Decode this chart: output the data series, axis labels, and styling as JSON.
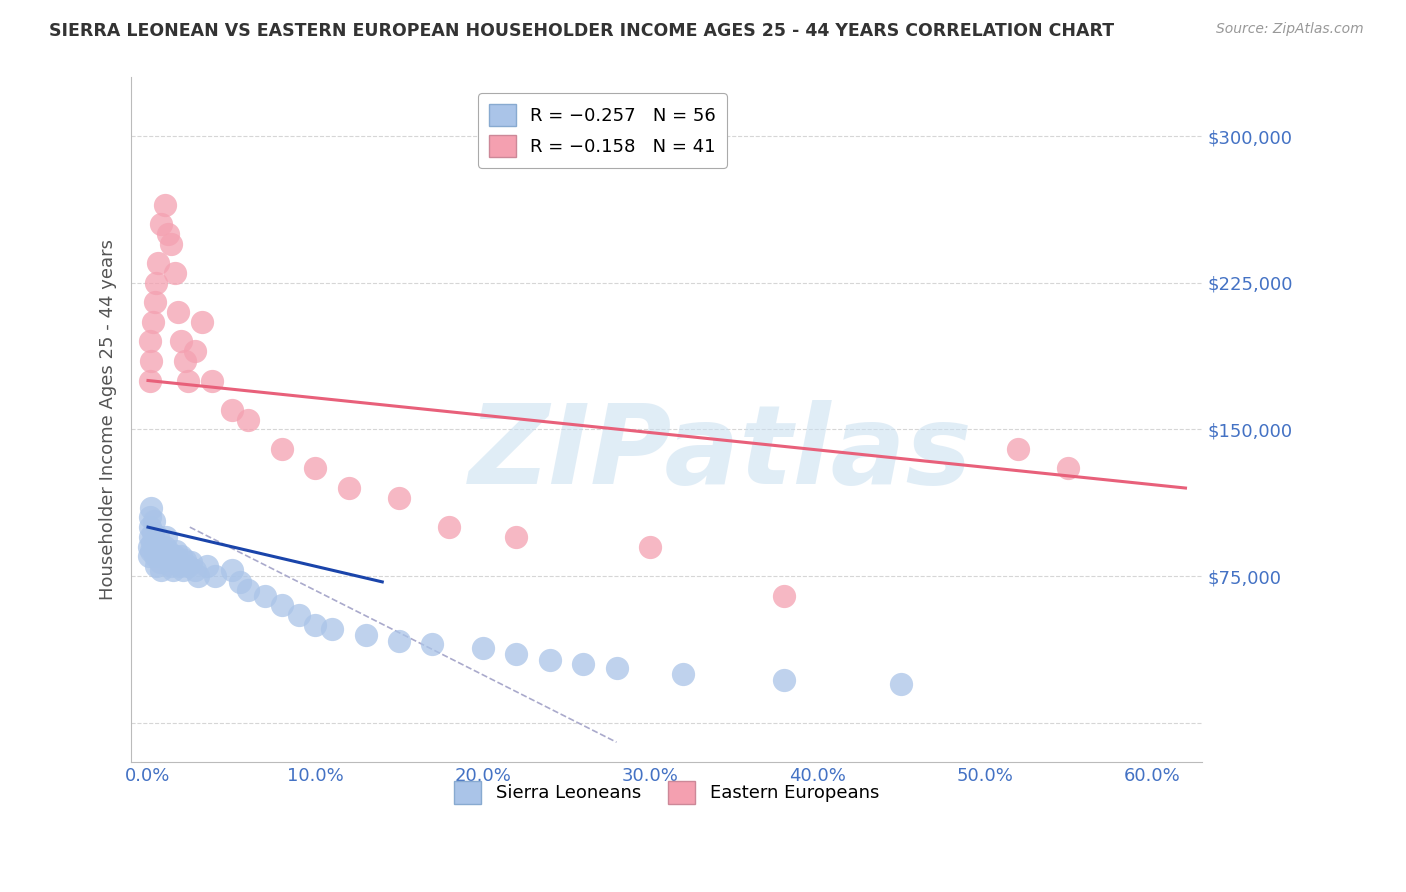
{
  "title": "SIERRA LEONEAN VS EASTERN EUROPEAN HOUSEHOLDER INCOME AGES 25 - 44 YEARS CORRELATION CHART",
  "source": "Source: ZipAtlas.com",
  "ylabel": "Householder Income Ages 25 - 44 years",
  "xlabel_ticks": [
    "0.0%",
    "10.0%",
    "20.0%",
    "30.0%",
    "40.0%",
    "50.0%",
    "60.0%"
  ],
  "xlabel_vals": [
    0.0,
    10.0,
    20.0,
    30.0,
    40.0,
    50.0,
    60.0
  ],
  "yticks": [
    0,
    75000,
    150000,
    225000,
    300000
  ],
  "ytick_labels": [
    "",
    "$75,000",
    "$150,000",
    "$225,000",
    "$300,000"
  ],
  "xlim": [
    -1.0,
    63
  ],
  "ylim": [
    -20000,
    330000
  ],
  "bg_color": "#ffffff",
  "grid_color": "#cccccc",
  "title_color": "#333333",
  "axis_color": "#4472c4",
  "scatter_blue": "#aac4e8",
  "scatter_pink": "#f4a0b0",
  "trend_blue": "#1a44aa",
  "trend_pink": "#e8607a",
  "watermark": "ZIPatlas",
  "watermark_color": "#c8dff0",
  "blue_scatter_x": [
    0.05,
    0.08,
    0.1,
    0.12,
    0.15,
    0.18,
    0.2,
    0.25,
    0.3,
    0.35,
    0.4,
    0.45,
    0.5,
    0.55,
    0.6,
    0.7,
    0.8,
    0.9,
    1.0,
    1.1,
    1.2,
    1.3,
    1.4,
    1.5,
    1.6,
    1.7,
    1.8,
    1.9,
    2.0,
    2.1,
    2.2,
    2.4,
    2.6,
    2.8,
    3.0,
    3.5,
    4.0,
    5.0,
    5.5,
    6.0,
    7.0,
    8.0,
    9.0,
    10.0,
    11.0,
    13.0,
    15.0,
    17.0,
    20.0,
    22.0,
    24.0,
    26.0,
    28.0,
    32.0,
    38.0,
    45.0
  ],
  "blue_scatter_y": [
    85000,
    90000,
    100000,
    95000,
    105000,
    88000,
    110000,
    92000,
    97000,
    103000,
    85000,
    92000,
    80000,
    88000,
    95000,
    82000,
    78000,
    85000,
    90000,
    95000,
    88000,
    83000,
    80000,
    78000,
    85000,
    88000,
    82000,
    80000,
    85000,
    78000,
    83000,
    80000,
    82000,
    78000,
    75000,
    80000,
    75000,
    78000,
    72000,
    68000,
    65000,
    60000,
    55000,
    50000,
    48000,
    45000,
    42000,
    40000,
    38000,
    35000,
    32000,
    30000,
    28000,
    25000,
    22000,
    20000
  ],
  "pink_scatter_x": [
    0.1,
    0.15,
    0.2,
    0.3,
    0.4,
    0.5,
    0.6,
    0.8,
    1.0,
    1.2,
    1.4,
    1.6,
    1.8,
    2.0,
    2.2,
    2.4,
    2.8,
    3.2,
    3.8,
    5.0,
    6.0,
    8.0,
    10.0,
    12.0,
    15.0,
    18.0,
    22.0,
    30.0,
    38.0,
    52.0,
    55.0
  ],
  "pink_scatter_y": [
    175000,
    195000,
    185000,
    205000,
    215000,
    225000,
    235000,
    255000,
    265000,
    250000,
    245000,
    230000,
    210000,
    195000,
    185000,
    175000,
    190000,
    205000,
    175000,
    160000,
    155000,
    140000,
    130000,
    120000,
    115000,
    100000,
    95000,
    90000,
    65000,
    140000,
    130000
  ],
  "blue_line_x": [
    0.0,
    14.0
  ],
  "blue_line_y": [
    100000,
    72000
  ],
  "pink_line_x": [
    0.0,
    62.0
  ],
  "pink_line_y": [
    175000,
    120000
  ],
  "dashed_line_x": [
    2.5,
    28.0
  ],
  "dashed_line_y": [
    100000,
    -10000
  ]
}
